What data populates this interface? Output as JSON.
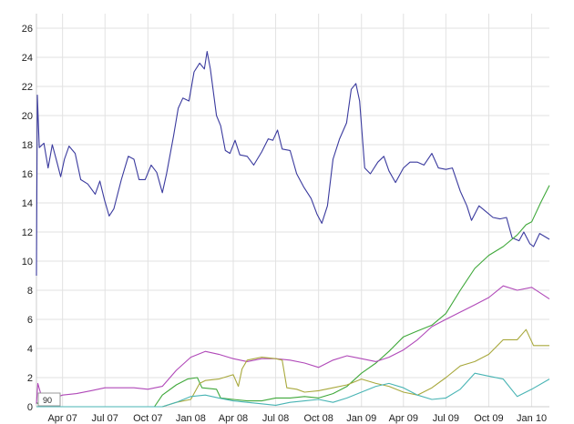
{
  "chart_data": {
    "type": "line",
    "title": "",
    "xlabel": "",
    "ylabel": "",
    "xlim": [
      "2007-02-04",
      "2010-02-08"
    ],
    "ylim": [
      0,
      27
    ],
    "grid": true,
    "yticks": [
      0,
      2,
      4,
      6,
      8,
      10,
      12,
      14,
      16,
      18,
      20,
      22,
      24,
      26
    ],
    "xticks": [
      {
        "date": "2007-04-01",
        "label": "Apr 07"
      },
      {
        "date": "2007-07-01",
        "label": "Jul 07"
      },
      {
        "date": "2007-10-01",
        "label": "Oct 07"
      },
      {
        "date": "2008-01-01",
        "label": "Jan 08"
      },
      {
        "date": "2008-04-01",
        "label": "Apr 08"
      },
      {
        "date": "2008-07-01",
        "label": "Jul 08"
      },
      {
        "date": "2008-10-01",
        "label": "Oct 08"
      },
      {
        "date": "2009-01-01",
        "label": "Jan 09"
      },
      {
        "date": "2009-04-01",
        "label": "Apr 09"
      },
      {
        "date": "2009-07-01",
        "label": "Jul 09"
      },
      {
        "date": "2009-10-01",
        "label": "Oct 09"
      },
      {
        "date": "2010-01-01",
        "label": "Jan 10"
      }
    ],
    "annotation": "90",
    "series": [
      {
        "color": "#3a3a9e",
        "points": [
          [
            "2007-02-04",
            9
          ],
          [
            "2007-02-06",
            21.4
          ],
          [
            "2007-02-10",
            17.8
          ],
          [
            "2007-02-20",
            18.1
          ],
          [
            "2007-03-01",
            16.4
          ],
          [
            "2007-03-10",
            18.0
          ],
          [
            "2007-03-20",
            16.8
          ],
          [
            "2007-03-28",
            15.8
          ],
          [
            "2007-04-05",
            17.0
          ],
          [
            "2007-04-15",
            17.9
          ],
          [
            "2007-04-28",
            17.4
          ],
          [
            "2007-05-10",
            15.6
          ],
          [
            "2007-05-25",
            15.3
          ],
          [
            "2007-06-10",
            14.6
          ],
          [
            "2007-06-20",
            15.5
          ],
          [
            "2007-06-30",
            14.2
          ],
          [
            "2007-07-10",
            13.1
          ],
          [
            "2007-07-20",
            13.6
          ],
          [
            "2007-08-05",
            15.6
          ],
          [
            "2007-08-20",
            17.2
          ],
          [
            "2007-09-01",
            17.0
          ],
          [
            "2007-09-12",
            15.6
          ],
          [
            "2007-09-25",
            15.6
          ],
          [
            "2007-10-08",
            16.6
          ],
          [
            "2007-10-20",
            16.1
          ],
          [
            "2007-11-01",
            14.7
          ],
          [
            "2007-11-10",
            16.0
          ],
          [
            "2007-11-25",
            18.6
          ],
          [
            "2007-12-05",
            20.5
          ],
          [
            "2007-12-15",
            21.2
          ],
          [
            "2007-12-28",
            21.0
          ],
          [
            "2008-01-08",
            23.0
          ],
          [
            "2008-01-20",
            23.6
          ],
          [
            "2008-01-30",
            23.2
          ],
          [
            "2008-02-05",
            24.4
          ],
          [
            "2008-02-12",
            23.2
          ],
          [
            "2008-02-25",
            20.0
          ],
          [
            "2008-03-05",
            19.3
          ],
          [
            "2008-03-15",
            17.6
          ],
          [
            "2008-03-25",
            17.4
          ],
          [
            "2008-04-05",
            18.3
          ],
          [
            "2008-04-15",
            17.3
          ],
          [
            "2008-05-01",
            17.2
          ],
          [
            "2008-05-15",
            16.6
          ],
          [
            "2008-06-01",
            17.5
          ],
          [
            "2008-06-15",
            18.4
          ],
          [
            "2008-06-25",
            18.3
          ],
          [
            "2008-07-05",
            19.0
          ],
          [
            "2008-07-15",
            17.7
          ],
          [
            "2008-08-01",
            17.6
          ],
          [
            "2008-08-15",
            16.0
          ],
          [
            "2008-08-30",
            15.1
          ],
          [
            "2008-09-15",
            14.3
          ],
          [
            "2008-09-28",
            13.2
          ],
          [
            "2008-10-08",
            12.6
          ],
          [
            "2008-10-20",
            13.8
          ],
          [
            "2008-11-01",
            17.0
          ],
          [
            "2008-11-15",
            18.4
          ],
          [
            "2008-11-30",
            19.5
          ],
          [
            "2008-12-10",
            21.8
          ],
          [
            "2008-12-20",
            22.2
          ],
          [
            "2008-12-28",
            21.0
          ],
          [
            "2009-01-08",
            16.4
          ],
          [
            "2009-01-20",
            16.0
          ],
          [
            "2009-02-05",
            16.8
          ],
          [
            "2009-02-18",
            17.2
          ],
          [
            "2009-03-01",
            16.2
          ],
          [
            "2009-03-15",
            15.4
          ],
          [
            "2009-04-01",
            16.4
          ],
          [
            "2009-04-15",
            16.8
          ],
          [
            "2009-05-01",
            16.8
          ],
          [
            "2009-05-15",
            16.6
          ],
          [
            "2009-06-01",
            17.4
          ],
          [
            "2009-06-15",
            16.4
          ],
          [
            "2009-07-01",
            16.3
          ],
          [
            "2009-07-15",
            16.4
          ],
          [
            "2009-08-01",
            14.8
          ],
          [
            "2009-08-15",
            13.8
          ],
          [
            "2009-08-25",
            12.8
          ],
          [
            "2009-09-10",
            13.8
          ],
          [
            "2009-09-25",
            13.4
          ],
          [
            "2009-10-10",
            13.0
          ],
          [
            "2009-10-25",
            12.9
          ],
          [
            "2009-11-08",
            13.0
          ],
          [
            "2009-11-20",
            11.6
          ],
          [
            "2009-12-05",
            11.4
          ],
          [
            "2009-12-15",
            12.0
          ],
          [
            "2009-12-28",
            11.2
          ],
          [
            "2010-01-05",
            11.0
          ],
          [
            "2010-01-18",
            11.9
          ],
          [
            "2010-02-08",
            11.5
          ]
        ]
      },
      {
        "color": "#3fa83a",
        "points": [
          [
            "2007-02-04",
            0.3
          ],
          [
            "2007-02-15",
            0
          ],
          [
            "2007-10-15",
            0
          ],
          [
            "2007-11-01",
            0.8
          ],
          [
            "2007-12-01",
            1.5
          ],
          [
            "2007-12-25",
            1.9
          ],
          [
            "2008-01-15",
            2.0
          ],
          [
            "2008-01-25",
            1.3
          ],
          [
            "2008-02-25",
            1.2
          ],
          [
            "2008-03-05",
            0.6
          ],
          [
            "2008-04-01",
            0.5
          ],
          [
            "2008-05-01",
            0.4
          ],
          [
            "2008-06-01",
            0.4
          ],
          [
            "2008-07-01",
            0.6
          ],
          [
            "2008-08-01",
            0.6
          ],
          [
            "2008-09-01",
            0.7
          ],
          [
            "2008-10-01",
            0.6
          ],
          [
            "2008-11-01",
            0.9
          ],
          [
            "2008-12-01",
            1.4
          ],
          [
            "2009-01-01",
            2.3
          ],
          [
            "2009-02-01",
            3.0
          ],
          [
            "2009-03-01",
            3.8
          ],
          [
            "2009-04-01",
            4.8
          ],
          [
            "2009-05-01",
            5.2
          ],
          [
            "2009-06-01",
            5.6
          ],
          [
            "2009-07-01",
            6.4
          ],
          [
            "2009-08-01",
            8.0
          ],
          [
            "2009-09-01",
            9.5
          ],
          [
            "2009-10-01",
            10.4
          ],
          [
            "2009-11-01",
            11.0
          ],
          [
            "2009-12-01",
            11.8
          ],
          [
            "2009-12-20",
            12.5
          ],
          [
            "2010-01-01",
            12.7
          ],
          [
            "2010-01-20",
            14.0
          ],
          [
            "2010-02-08",
            15.2
          ]
        ]
      },
      {
        "color": "#b048b8",
        "points": [
          [
            "2007-02-04",
            0.2
          ],
          [
            "2007-02-07",
            1.6
          ],
          [
            "2007-02-15",
            0.7
          ],
          [
            "2007-03-15",
            0.6
          ],
          [
            "2007-04-01",
            0.8
          ],
          [
            "2007-05-01",
            0.9
          ],
          [
            "2007-06-01",
            1.1
          ],
          [
            "2007-07-01",
            1.3
          ],
          [
            "2007-08-01",
            1.3
          ],
          [
            "2007-09-01",
            1.3
          ],
          [
            "2007-10-01",
            1.2
          ],
          [
            "2007-11-01",
            1.4
          ],
          [
            "2007-12-01",
            2.5
          ],
          [
            "2008-01-01",
            3.4
          ],
          [
            "2008-02-01",
            3.8
          ],
          [
            "2008-03-01",
            3.6
          ],
          [
            "2008-04-01",
            3.3
          ],
          [
            "2008-05-01",
            3.1
          ],
          [
            "2008-06-01",
            3.3
          ],
          [
            "2008-07-01",
            3.3
          ],
          [
            "2008-08-01",
            3.2
          ],
          [
            "2008-09-01",
            3.0
          ],
          [
            "2008-10-01",
            2.7
          ],
          [
            "2008-11-01",
            3.2
          ],
          [
            "2008-12-01",
            3.5
          ],
          [
            "2009-01-01",
            3.3
          ],
          [
            "2009-02-01",
            3.1
          ],
          [
            "2009-03-01",
            3.4
          ],
          [
            "2009-04-01",
            3.9
          ],
          [
            "2009-05-01",
            4.6
          ],
          [
            "2009-06-01",
            5.5
          ],
          [
            "2009-07-01",
            6.0
          ],
          [
            "2009-08-01",
            6.5
          ],
          [
            "2009-09-01",
            7.0
          ],
          [
            "2009-10-01",
            7.5
          ],
          [
            "2009-11-01",
            8.3
          ],
          [
            "2009-12-01",
            8.0
          ],
          [
            "2010-01-01",
            8.2
          ],
          [
            "2010-02-08",
            7.4
          ]
        ]
      },
      {
        "color": "#a8a83c",
        "points": [
          [
            "2007-02-04",
            0
          ],
          [
            "2007-11-01",
            0
          ],
          [
            "2007-12-01",
            0.3
          ],
          [
            "2008-01-01",
            0.5
          ],
          [
            "2008-01-20",
            1.6
          ],
          [
            "2008-02-01",
            1.8
          ],
          [
            "2008-03-01",
            1.9
          ],
          [
            "2008-04-01",
            2.2
          ],
          [
            "2008-04-12",
            1.4
          ],
          [
            "2008-04-20",
            2.6
          ],
          [
            "2008-05-01",
            3.2
          ],
          [
            "2008-06-01",
            3.4
          ],
          [
            "2008-07-01",
            3.3
          ],
          [
            "2008-07-15",
            3.2
          ],
          [
            "2008-07-25",
            1.3
          ],
          [
            "2008-08-15",
            1.2
          ],
          [
            "2008-09-01",
            1.0
          ],
          [
            "2008-10-01",
            1.1
          ],
          [
            "2008-11-01",
            1.3
          ],
          [
            "2008-12-01",
            1.5
          ],
          [
            "2009-01-01",
            1.9
          ],
          [
            "2009-02-01",
            1.6
          ],
          [
            "2009-03-01",
            1.4
          ],
          [
            "2009-04-01",
            1.0
          ],
          [
            "2009-05-01",
            0.8
          ],
          [
            "2009-06-01",
            1.3
          ],
          [
            "2009-07-01",
            2.0
          ],
          [
            "2009-08-01",
            2.8
          ],
          [
            "2009-09-01",
            3.1
          ],
          [
            "2009-10-01",
            3.6
          ],
          [
            "2009-11-01",
            4.6
          ],
          [
            "2009-12-01",
            4.6
          ],
          [
            "2009-12-20",
            5.3
          ],
          [
            "2010-01-05",
            4.2
          ],
          [
            "2010-02-08",
            4.2
          ]
        ]
      },
      {
        "color": "#48b4b4",
        "points": [
          [
            "2007-02-04",
            0
          ],
          [
            "2007-11-01",
            0
          ],
          [
            "2007-12-01",
            0.3
          ],
          [
            "2008-01-01",
            0.7
          ],
          [
            "2008-02-01",
            0.8
          ],
          [
            "2008-03-01",
            0.6
          ],
          [
            "2008-04-01",
            0.4
          ],
          [
            "2008-05-01",
            0.3
          ],
          [
            "2008-06-01",
            0.2
          ],
          [
            "2008-07-01",
            0.1
          ],
          [
            "2008-08-01",
            0.3
          ],
          [
            "2008-09-01",
            0.4
          ],
          [
            "2008-10-01",
            0.5
          ],
          [
            "2008-11-01",
            0.3
          ],
          [
            "2008-12-01",
            0.6
          ],
          [
            "2009-01-01",
            1.0
          ],
          [
            "2009-02-01",
            1.4
          ],
          [
            "2009-03-01",
            1.6
          ],
          [
            "2009-04-01",
            1.3
          ],
          [
            "2009-05-01",
            0.8
          ],
          [
            "2009-06-01",
            0.5
          ],
          [
            "2009-07-01",
            0.6
          ],
          [
            "2009-08-01",
            1.2
          ],
          [
            "2009-09-01",
            2.3
          ],
          [
            "2009-10-01",
            2.1
          ],
          [
            "2009-11-01",
            1.9
          ],
          [
            "2009-12-01",
            0.7
          ],
          [
            "2010-01-01",
            1.2
          ],
          [
            "2010-02-08",
            1.9
          ]
        ]
      }
    ]
  }
}
